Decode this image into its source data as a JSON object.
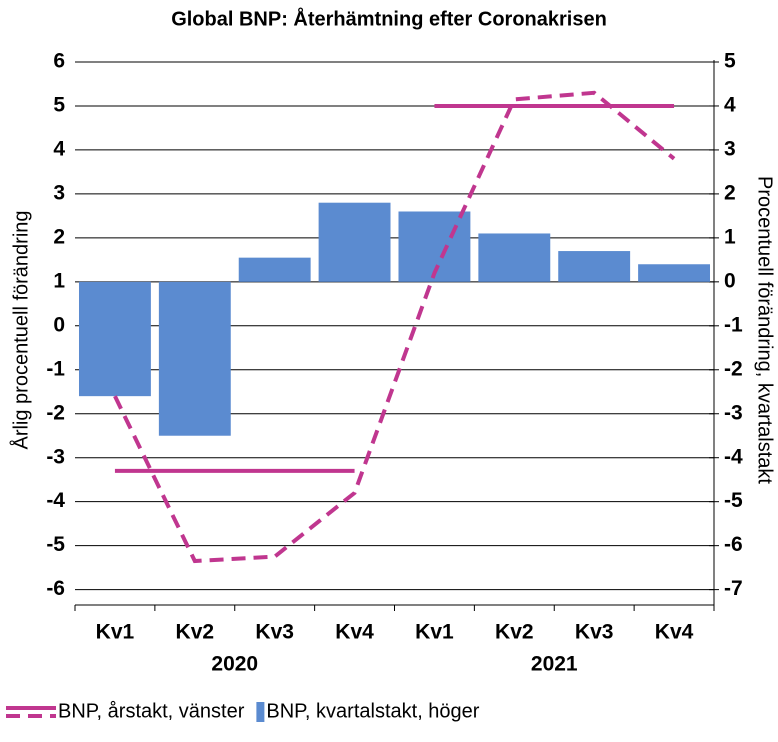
{
  "chart_data": {
    "type": "bar_line_combo",
    "title": "Global BNP: Återhämtning efter Coronakrisen",
    "ylabel": "Årlig procentuell förändring",
    "y2label": "Procentuell förändring, kvartalstakt",
    "categories": [
      "Kv1",
      "Kv2",
      "Kv3",
      "Kv4",
      "Kv1",
      "Kv2",
      "Kv3",
      "Kv4"
    ],
    "year_labels": [
      "2020",
      "2021"
    ],
    "ylim": [
      -6.35,
      6
    ],
    "yticks": [
      6,
      5,
      4,
      3,
      2,
      1,
      0,
      -1,
      -2,
      -3,
      -4,
      -5,
      -6
    ],
    "y2lim": [
      -7.35,
      5
    ],
    "y2ticks": [
      5,
      4,
      3,
      2,
      1,
      0,
      -1,
      -2,
      -3,
      -4,
      -5,
      -6,
      -7
    ],
    "grid": true,
    "series": [
      {
        "name": "BNP, årstakt, vänster",
        "color": "#c0368f",
        "axis": "y",
        "values": [
          -1.6,
          -5.35,
          -5.25,
          -3.8,
          1.2,
          5.15,
          5.3,
          3.8
        ],
        "annual_values": [
          -3.3,
          5.0
        ]
      },
      {
        "name": "BNP, kvartalstakt, höger",
        "color": "#5b8bd0",
        "axis": "y2",
        "values": [
          -2.6,
          -3.5,
          0.55,
          1.8,
          1.6,
          1.1,
          0.7,
          0.4
        ]
      }
    ]
  }
}
